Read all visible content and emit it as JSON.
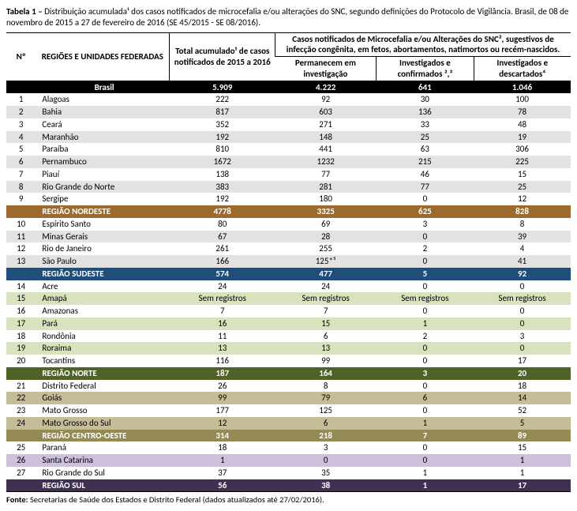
{
  "title_bold": "Tabela 1 –",
  "title_rest": " Distribuição acumulada¹ dos casos notificados de microcefalia e/ou alterações do SNC, segundo definições do Protocolo de Vigilância. Brasil, de 08 de novembro de 2015 a 27 de fevereiro de 2016 (SE 45/2015 - SE 08/2016).",
  "headers": {
    "num": "Nº",
    "region": "REGIÕES E UNIDADES FEDERADAS",
    "total": "Total acumulado¹ de casos notificados de 2015 a 2016",
    "group": "Casos notificados de Microcefalia e/ou Alterações do SNC², sugestivos de infecção congênita, em fetos, abortamentos, natimortos ou recém-nascidos.",
    "c1": "Permanecem em investigação",
    "c2": "Investigados e confirmados ²,³",
    "c3": "Investigados e descartados⁴"
  },
  "brasil": {
    "name": "Brasil",
    "total": "5.909",
    "c1": "4.222",
    "c2": "641",
    "c3": "1.046"
  },
  "colors": {
    "alt": "#e2e2e2",
    "nordeste": "#9c6a2f",
    "sudeste": "#1e4e79",
    "norte_alt": "#d6e3bc",
    "norte": "#4f6228",
    "co_alt": "#c4bd97",
    "co": "#948a54",
    "sul_alt": "#ccc0da",
    "sul": "#403152"
  },
  "rows": [
    {
      "n": "1",
      "name": "Alagoas",
      "v": [
        "222",
        "92",
        "30",
        "100"
      ],
      "bg": ""
    },
    {
      "n": "2",
      "name": "Bahia",
      "v": [
        "817",
        "603",
        "136",
        "78"
      ],
      "bg": "alt"
    },
    {
      "n": "3",
      "name": "Ceará",
      "v": [
        "352",
        "271",
        "33",
        "48"
      ],
      "bg": ""
    },
    {
      "n": "4",
      "name": "Maranhão",
      "v": [
        "192",
        "148",
        "25",
        "19"
      ],
      "bg": "alt"
    },
    {
      "n": "5",
      "name": "Paraíba",
      "v": [
        "810",
        "441",
        "63",
        "306"
      ],
      "bg": ""
    },
    {
      "n": "6",
      "name": "Pernambuco",
      "v": [
        "1672",
        "1232",
        "215",
        "225"
      ],
      "bg": "alt"
    },
    {
      "n": "7",
      "name": "Piauí",
      "v": [
        "138",
        "77",
        "46",
        "15"
      ],
      "bg": ""
    },
    {
      "n": "8",
      "name": "Rio Grande do Norte",
      "v": [
        "383",
        "281",
        "77",
        "25"
      ],
      "bg": "alt"
    },
    {
      "n": "9",
      "name": "Sergipe",
      "v": [
        "192",
        "180",
        "0",
        "12"
      ],
      "bg": ""
    },
    {
      "region": true,
      "name": "REGIÃO NORDESTE",
      "v": [
        "4778",
        "3325",
        "625",
        "828"
      ],
      "bg": "nordeste"
    },
    {
      "n": "10",
      "name": "Espírito Santo",
      "v": [
        "80",
        "69",
        "3",
        "8"
      ],
      "bg": ""
    },
    {
      "n": "11",
      "name": "Minas Gerais",
      "v": [
        "67",
        "28",
        "0",
        "39"
      ],
      "bg": "alt"
    },
    {
      "n": "12",
      "name": "Rio de Janeiro",
      "v": [
        "261",
        "255",
        "2",
        "4"
      ],
      "bg": ""
    },
    {
      "n": "13",
      "name": "São Paulo",
      "v": [
        "166",
        "125*⁵",
        "0",
        "41"
      ],
      "bg": "alt"
    },
    {
      "region": true,
      "name": "REGIÃO SUDESTE",
      "v": [
        "574",
        "477",
        "5",
        "92"
      ],
      "bg": "sudeste"
    },
    {
      "n": "14",
      "name": "Acre",
      "v": [
        "24",
        "24",
        "0",
        "0"
      ],
      "bg": ""
    },
    {
      "n": "15",
      "name": "Amapá",
      "v": [
        "Sem registros",
        "Sem registros",
        "Sem registros",
        "Sem registros"
      ],
      "bg": "norte_alt"
    },
    {
      "n": "16",
      "name": "Amazonas",
      "v": [
        "7",
        "7",
        "0",
        "0"
      ],
      "bg": ""
    },
    {
      "n": "17",
      "name": "Pará",
      "v": [
        "16",
        "15",
        "1",
        "0"
      ],
      "bg": "norte_alt"
    },
    {
      "n": "18",
      "name": "Rondônia",
      "v": [
        "11",
        "6",
        "2",
        "3"
      ],
      "bg": ""
    },
    {
      "n": "19",
      "name": "Roraima",
      "v": [
        "13",
        "13",
        "0",
        "0"
      ],
      "bg": "norte_alt"
    },
    {
      "n": "20",
      "name": "Tocantins",
      "v": [
        "116",
        "99",
        "0",
        "17"
      ],
      "bg": ""
    },
    {
      "region": true,
      "name": "REGIÃO NORTE",
      "v": [
        "187",
        "164",
        "3",
        "20"
      ],
      "bg": "norte"
    },
    {
      "n": "21",
      "name": "Distrito Federal",
      "v": [
        "26",
        "8",
        "0",
        "18"
      ],
      "bg": ""
    },
    {
      "n": "22",
      "name": "Goiás",
      "v": [
        "99",
        "79",
        "6",
        "14"
      ],
      "bg": "co_alt"
    },
    {
      "n": "23",
      "name": "Mato Grosso",
      "v": [
        "177",
        "125",
        "0",
        "52"
      ],
      "bg": ""
    },
    {
      "n": "24",
      "name": "Mato Grosso do Sul",
      "v": [
        "12",
        "6",
        "1",
        "5"
      ],
      "bg": "co_alt"
    },
    {
      "region": true,
      "name": "REGIÃO CENTRO-OESTE",
      "v": [
        "314",
        "218",
        "7",
        "89"
      ],
      "bg": "co"
    },
    {
      "n": "25",
      "name": "Paraná",
      "v": [
        "18",
        "3",
        "0",
        "15"
      ],
      "bg": ""
    },
    {
      "n": "26",
      "name": "Santa Catarina",
      "v": [
        "1",
        "0",
        "0",
        "1"
      ],
      "bg": "sul_alt"
    },
    {
      "n": "27",
      "name": "Rio Grande do Sul",
      "v": [
        "37",
        "35",
        "1",
        "1"
      ],
      "bg": ""
    },
    {
      "region": true,
      "name": "REGIÃO SUL",
      "v": [
        "56",
        "38",
        "1",
        "17"
      ],
      "bg": "sul",
      "last": true
    }
  ],
  "fonte_bold": "Fonte:",
  "fonte_rest": " Secretarias de Saúde dos Estados e Distrito Federal (dados atualizados até 27/02/2016)."
}
